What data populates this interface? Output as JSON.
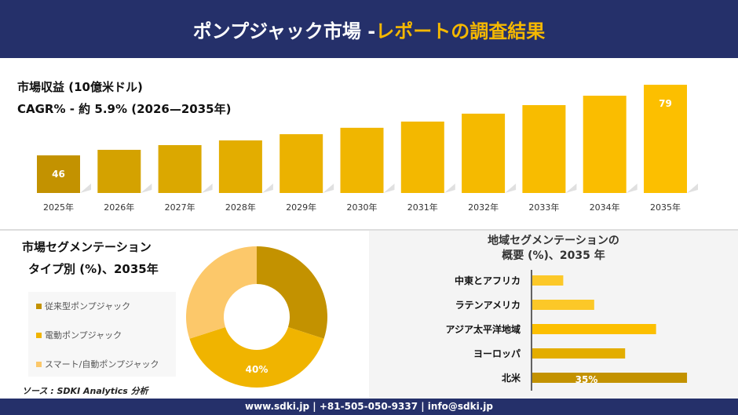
{
  "header": {
    "title_main": "ポンプジャック市場 - ",
    "title_accent": "レポートの調査結果"
  },
  "revenue": {
    "title": "市場収益 (10億米ドル)",
    "cagr": "CAGR% - 約 5.9% (2026—2035年)"
  },
  "chart_data": [
    {
      "type": "bar",
      "categories": [
        "2025年",
        "2026年",
        "2027年",
        "2028年",
        "2029年",
        "2030年",
        "2031年",
        "2032年",
        "2033年",
        "2034年",
        "2035年"
      ],
      "values": [
        46,
        48.6,
        50.8,
        53,
        55.9,
        58.9,
        61.8,
        65.5,
        69.5,
        73.9,
        79
      ],
      "data_labels": {
        "0": "46",
        "10": "79"
      },
      "colors": [
        "#c39200",
        "#d4a200",
        "#dba800",
        "#e3ad00",
        "#ebb200",
        "#f0b600",
        "#f3b800",
        "#f5ba00",
        "#f8bc00",
        "#fabd00",
        "#fcbf00"
      ]
    },
    {
      "type": "pie",
      "title": "市場セグメンテーション タイプ別 (%)、2035年",
      "labels": [
        "従来型ポンプジャック",
        "電動ポンプジャック",
        "スマート/自動ポンプジャック"
      ],
      "values": [
        30,
        40,
        30
      ],
      "data_labels": {
        "1": "40%"
      },
      "colors": [
        "#c39200",
        "#f0b400",
        "#fcc86a"
      ],
      "hole": true
    },
    {
      "type": "bar",
      "orientation": "horizontal",
      "title": "地域セグメンテーションの 概要 (%)、2035 年",
      "categories": [
        "中東とアフリカ",
        "ラテンアメリカ",
        "アジア太平洋地域",
        "ヨーロッパ",
        "北米"
      ],
      "values": [
        7,
        14,
        28,
        21,
        35
      ],
      "data_labels": {
        "4": "35%"
      },
      "colors": [
        "#fcc828",
        "#fcc828",
        "#fcbf00",
        "#e3ad00",
        "#c39200"
      ]
    }
  ],
  "segment": {
    "title1": "市場セグメンテーション",
    "title2": "タイプ別 (%)、2035年",
    "source": "ソース : SDKI Analytics 分析"
  },
  "region": {
    "title1": "地域セグメンテーションの",
    "title2": "概要 (%)、2035 年"
  },
  "footer": {
    "contact": "www.sdki.jp | +81-505-050-9337 | info@sdki.jp"
  }
}
